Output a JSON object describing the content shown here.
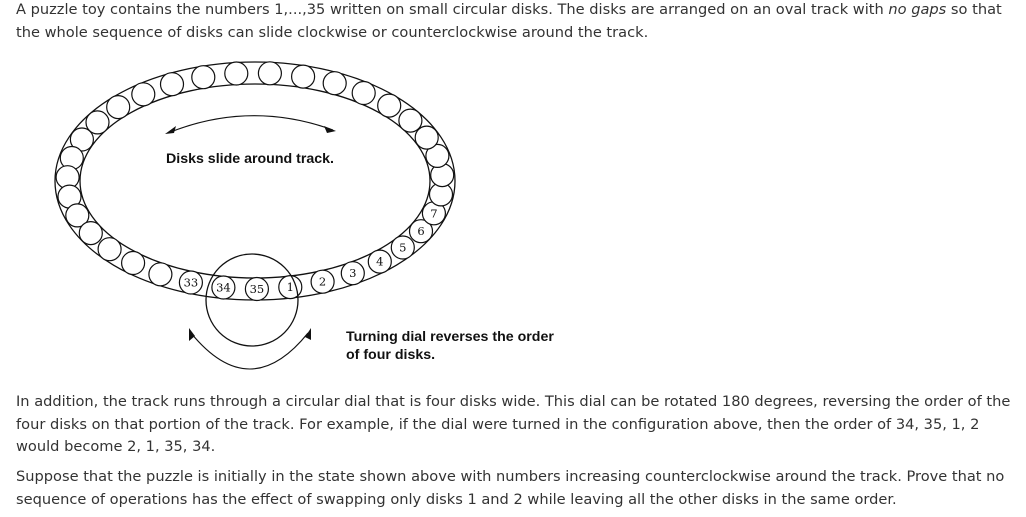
{
  "problem": {
    "intro_before": "A puzzle toy contains the numbers 1,...,35 written on small circular disks. The disks are arranged on an oval track with ",
    "intro_emph": "no gaps",
    "intro_after": " so that the whole sequence of disks can slide clockwise or counterclockwise around the track.",
    "dial_paragraph": "In addition, the track runs through a circular dial that is four disks wide. This dial can be rotated 180 degrees, reversing the order of the four disks on that portion of the track. For example, if the dial were turned in the configuration above, then the order of 34, 35, 1, 2 would become 2, 1, 35, 34.",
    "task_paragraph": "Suppose that the puzzle is initially in the state shown above with numbers increasing counterclockwise around the track. Prove that no sequence of operations has the effect of swapping only disks 1 and 2 while leaving all the other disks in the same order."
  },
  "figure": {
    "caption_track": "Disks slide around track.",
    "caption_dial_line1": "Turning dial reverses the order",
    "caption_dial_line2": "of four disks.",
    "disk_count": 35,
    "labeled_disks": [
      {
        "index": 0,
        "label": "33"
      },
      {
        "index": 1,
        "label": "34"
      },
      {
        "index": 2,
        "label": "35"
      },
      {
        "index": 3,
        "label": "1"
      },
      {
        "index": 4,
        "label": "2"
      },
      {
        "index": 5,
        "label": "3"
      },
      {
        "index": 6,
        "label": "4"
      },
      {
        "index": 7,
        "label": "5"
      },
      {
        "index": 8,
        "label": "6"
      },
      {
        "index": 9,
        "label": "7"
      }
    ]
  }
}
